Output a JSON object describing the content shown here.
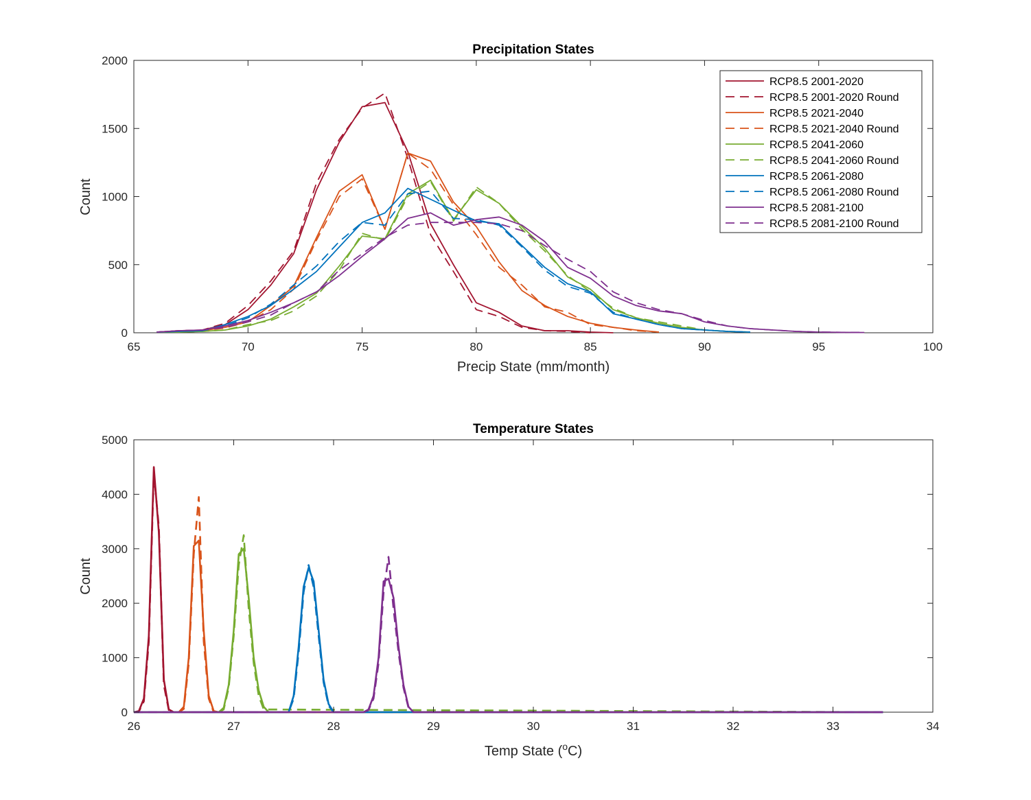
{
  "colors": {
    "p2001": "#A2142F",
    "p2021": "#D95319",
    "p2041": "#77AC30",
    "p2061": "#0072BD",
    "p2081": "#7E2F8E"
  },
  "legend": {
    "placement": "top-right",
    "entries": [
      {
        "label": "RCP8.5 2001-2020",
        "color": "#A2142F",
        "dashed": false
      },
      {
        "label": "RCP8.5 2001-2020 Round",
        "color": "#A2142F",
        "dashed": true
      },
      {
        "label": "RCP8.5 2021-2040",
        "color": "#D95319",
        "dashed": false
      },
      {
        "label": "RCP8.5 2021-2040 Round",
        "color": "#D95319",
        "dashed": true
      },
      {
        "label": "RCP8.5 2041-2060",
        "color": "#77AC30",
        "dashed": false
      },
      {
        "label": "RCP8.5 2041-2060 Round",
        "color": "#77AC30",
        "dashed": true
      },
      {
        "label": "RCP8.5 2061-2080",
        "color": "#0072BD",
        "dashed": false
      },
      {
        "label": "RCP8.5 2061-2080 Round",
        "color": "#0072BD",
        "dashed": true
      },
      {
        "label": "RCP8.5 2081-2100",
        "color": "#7E2F8E",
        "dashed": false
      },
      {
        "label": "RCP8.5 2081-2100 Round",
        "color": "#7E2F8E",
        "dashed": true
      }
    ]
  },
  "chart_data": [
    {
      "type": "line",
      "title": "Precipitation States",
      "xlabel": "Precip State (mm/month)",
      "ylabel": "Count",
      "xlim": [
        65,
        100
      ],
      "ylim": [
        0,
        2000
      ],
      "xticks": [
        "65",
        "70",
        "75",
        "80",
        "85",
        "90",
        "95",
        "100"
      ],
      "yticks": [
        "0",
        "500",
        "1000",
        "1500",
        "2000"
      ],
      "grid": false,
      "legend": "top-right",
      "series": [
        {
          "name": "RCP8.5 2001-2020",
          "color": "#A2142F",
          "dashed": false,
          "x": [
            66,
            67,
            68,
            69,
            70,
            71,
            72,
            73,
            74,
            75,
            76,
            77,
            78,
            79,
            80,
            81,
            82,
            83,
            84,
            85,
            86
          ],
          "y": [
            5,
            15,
            20,
            60,
            170,
            350,
            580,
            1050,
            1400,
            1660,
            1690,
            1330,
            800,
            500,
            220,
            150,
            50,
            15,
            15,
            5,
            0
          ]
        },
        {
          "name": "RCP8.5 2001-2020 Round",
          "color": "#A2142F",
          "dashed": true,
          "x": [
            66,
            67,
            68,
            69,
            70,
            71,
            72,
            73,
            74,
            75,
            76,
            77,
            78,
            79,
            80,
            81,
            82,
            83,
            84,
            85
          ],
          "y": [
            5,
            15,
            20,
            70,
            200,
            380,
            600,
            1100,
            1420,
            1650,
            1760,
            1280,
            720,
            450,
            170,
            120,
            40,
            15,
            10,
            0
          ]
        },
        {
          "name": "RCP8.5 2021-2040",
          "color": "#D95319",
          "dashed": false,
          "x": [
            66,
            67,
            68,
            69,
            70,
            71,
            72,
            73,
            74,
            75,
            76,
            77,
            78,
            79,
            80,
            81,
            82,
            83,
            84,
            85,
            86,
            87,
            88
          ],
          "y": [
            5,
            10,
            15,
            40,
            80,
            200,
            340,
            700,
            1040,
            1160,
            760,
            1320,
            1260,
            960,
            780,
            520,
            310,
            200,
            120,
            70,
            40,
            20,
            5
          ]
        },
        {
          "name": "RCP8.5 2021-2040 Round",
          "color": "#D95319",
          "dashed": true,
          "x": [
            66,
            67,
            68,
            69,
            70,
            71,
            72,
            73,
            74,
            75,
            76,
            77,
            78,
            79,
            80,
            81,
            82,
            83,
            84,
            85,
            86,
            87,
            88
          ],
          "y": [
            5,
            10,
            15,
            35,
            80,
            170,
            320,
            680,
            1000,
            1130,
            760,
            1320,
            1200,
            940,
            720,
            480,
            350,
            190,
            150,
            60,
            40,
            15,
            5
          ]
        },
        {
          "name": "RCP8.5 2041-2060",
          "color": "#77AC30",
          "dashed": false,
          "x": [
            66,
            67,
            68,
            69,
            70,
            71,
            72,
            73,
            74,
            75,
            76,
            77,
            78,
            79,
            80,
            81,
            82,
            83,
            84,
            85,
            86,
            87,
            88,
            89,
            90,
            91,
            92
          ],
          "y": [
            5,
            5,
            10,
            20,
            50,
            100,
            190,
            290,
            490,
            710,
            690,
            1020,
            1120,
            830,
            1050,
            950,
            780,
            620,
            410,
            320,
            170,
            110,
            70,
            40,
            20,
            10,
            5
          ]
        },
        {
          "name": "RCP8.5 2041-2060 Round",
          "color": "#77AC30",
          "dashed": true,
          "x": [
            66,
            67,
            68,
            69,
            70,
            71,
            72,
            73,
            74,
            75,
            76,
            77,
            78,
            79,
            80,
            81,
            82,
            83,
            84,
            85,
            86,
            87,
            88,
            89,
            90,
            91,
            92
          ],
          "y": [
            5,
            5,
            10,
            20,
            60,
            90,
            160,
            270,
            460,
            730,
            680,
            1000,
            1110,
            820,
            1070,
            950,
            760,
            600,
            420,
            300,
            180,
            110,
            80,
            50,
            20,
            10,
            5
          ]
        },
        {
          "name": "RCP8.5 2061-2080",
          "color": "#0072BD",
          "dashed": false,
          "x": [
            66,
            67,
            68,
            69,
            70,
            71,
            72,
            73,
            74,
            75,
            76,
            77,
            78,
            79,
            80,
            81,
            82,
            83,
            84,
            85,
            86,
            87,
            88,
            89,
            90,
            91,
            92
          ],
          "y": [
            5,
            10,
            15,
            60,
            120,
            200,
            320,
            450,
            630,
            810,
            880,
            1060,
            980,
            900,
            820,
            800,
            640,
            480,
            360,
            300,
            140,
            100,
            60,
            30,
            20,
            10,
            5
          ]
        },
        {
          "name": "RCP8.5 2061-2080 Round",
          "color": "#0072BD",
          "dashed": true,
          "x": [
            66,
            67,
            68,
            69,
            70,
            71,
            72,
            73,
            74,
            75,
            76,
            77,
            78,
            79,
            80,
            81,
            82,
            83,
            84,
            85,
            86,
            87,
            88,
            89,
            90,
            91,
            92
          ],
          "y": [
            5,
            10,
            15,
            50,
            110,
            210,
            350,
            490,
            670,
            810,
            790,
            1020,
            1040,
            840,
            830,
            790,
            630,
            460,
            340,
            290,
            150,
            100,
            60,
            30,
            20,
            10,
            5
          ]
        },
        {
          "name": "RCP8.5 2081-2100",
          "color": "#7E2F8E",
          "dashed": false,
          "x": [
            66,
            67,
            68,
            69,
            70,
            71,
            72,
            73,
            74,
            75,
            76,
            77,
            78,
            79,
            80,
            81,
            82,
            83,
            84,
            85,
            86,
            87,
            88,
            89,
            90,
            91,
            92,
            93,
            94,
            95,
            96,
            97
          ],
          "y": [
            5,
            15,
            20,
            50,
            90,
            150,
            220,
            300,
            420,
            560,
            690,
            840,
            880,
            790,
            830,
            850,
            790,
            670,
            480,
            400,
            270,
            200,
            160,
            140,
            80,
            50,
            30,
            20,
            10,
            5,
            3,
            2
          ]
        },
        {
          "name": "RCP8.5 2081-2100 Round",
          "color": "#7E2F8E",
          "dashed": true,
          "x": [
            66,
            67,
            68,
            69,
            70,
            71,
            72,
            73,
            74,
            75,
            76,
            77,
            78,
            79,
            80,
            81,
            82,
            83,
            84,
            85,
            86,
            87,
            88,
            89,
            90,
            91,
            92,
            93,
            94,
            95,
            96,
            97
          ],
          "y": [
            5,
            15,
            20,
            40,
            80,
            130,
            220,
            300,
            460,
            580,
            700,
            790,
            810,
            810,
            810,
            800,
            750,
            640,
            540,
            450,
            300,
            220,
            170,
            140,
            90,
            50,
            30,
            20,
            10,
            5,
            3,
            2
          ]
        }
      ]
    },
    {
      "type": "line",
      "title": "Temperature States",
      "xlabel": "Temp State (",
      "xlabel_sup": "o",
      "xlabel_after": "C)",
      "ylabel": "Count",
      "xlim": [
        26,
        34
      ],
      "ylim": [
        0,
        5000
      ],
      "xticks": [
        "26",
        "27",
        "28",
        "29",
        "30",
        "31",
        "32",
        "33",
        "34"
      ],
      "yticks": [
        "0",
        "1000",
        "2000",
        "3000",
        "4000",
        "5000"
      ],
      "grid": false,
      "series": [
        {
          "name": "RCP8.5 2001-2020",
          "color": "#A2142F",
          "dashed": false,
          "x": [
            26,
            26.05,
            26.1,
            26.15,
            26.2,
            26.25,
            26.3,
            26.35,
            26.4,
            26.5,
            33.5
          ],
          "y": [
            0,
            20,
            250,
            1400,
            4500,
            3300,
            600,
            50,
            0,
            0,
            0
          ]
        },
        {
          "name": "RCP8.5 2001-2020 Round",
          "color": "#A2142F",
          "dashed": true,
          "x": [
            26,
            26.05,
            26.1,
            26.15,
            26.2,
            26.25,
            26.3,
            26.35,
            26.4,
            26.5,
            33.5
          ],
          "y": [
            0,
            10,
            200,
            1300,
            4400,
            3400,
            500,
            40,
            0,
            0,
            0
          ]
        },
        {
          "name": "RCP8.5 2021-2040",
          "color": "#D95319",
          "dashed": false,
          "x": [
            26,
            26.45,
            26.5,
            26.55,
            26.6,
            26.65,
            26.7,
            26.75,
            26.8,
            26.85,
            33.5
          ],
          "y": [
            0,
            0,
            100,
            1000,
            3050,
            3150,
            1500,
            300,
            20,
            0,
            0
          ]
        },
        {
          "name": "RCP8.5 2021-2040 Round",
          "color": "#D95319",
          "dashed": true,
          "x": [
            26,
            26.45,
            26.5,
            26.55,
            26.6,
            26.65,
            26.7,
            26.75,
            26.8,
            33.5
          ],
          "y": [
            0,
            0,
            60,
            900,
            2900,
            3950,
            1300,
            250,
            0,
            0
          ]
        },
        {
          "name": "RCP8.5 2041-2060",
          "color": "#77AC30",
          "dashed": false,
          "x": [
            26,
            26.85,
            26.9,
            26.95,
            27,
            27.05,
            27.1,
            27.15,
            27.2,
            27.25,
            27.3,
            27.35,
            33.5
          ],
          "y": [
            0,
            0,
            80,
            500,
            1500,
            2900,
            3000,
            2100,
            1000,
            400,
            100,
            0,
            0
          ]
        },
        {
          "name": "RCP8.5 2041-2060 Round",
          "color": "#77AC30",
          "dashed": true,
          "x": [
            26,
            26.85,
            26.9,
            26.95,
            27,
            27.05,
            27.1,
            27.15,
            27.2,
            27.25,
            27.3,
            33.5
          ],
          "y": [
            0,
            0,
            50,
            450,
            1400,
            2700,
            3250,
            1900,
            900,
            300,
            50,
            0
          ]
        },
        {
          "name": "RCP8.5 2061-2080",
          "color": "#0072BD",
          "dashed": false,
          "x": [
            26,
            27.55,
            27.6,
            27.65,
            27.7,
            27.75,
            27.8,
            27.85,
            27.9,
            27.95,
            28,
            33.5
          ],
          "y": [
            0,
            0,
            300,
            1200,
            2300,
            2650,
            2400,
            1500,
            600,
            150,
            0,
            0
          ]
        },
        {
          "name": "RCP8.5 2061-2080 Round",
          "color": "#0072BD",
          "dashed": true,
          "x": [
            26,
            27.55,
            27.6,
            27.65,
            27.7,
            27.75,
            27.8,
            27.85,
            27.9,
            27.95,
            28,
            33.5
          ],
          "y": [
            0,
            0,
            250,
            1100,
            2200,
            2700,
            2300,
            1400,
            550,
            120,
            0,
            0
          ]
        },
        {
          "name": "RCP8.5 2081-2100",
          "color": "#7E2F8E",
          "dashed": false,
          "x": [
            26,
            28.3,
            28.35,
            28.4,
            28.45,
            28.5,
            28.55,
            28.6,
            28.65,
            28.7,
            28.75,
            28.8,
            33.5
          ],
          "y": [
            0,
            0,
            50,
            300,
            1000,
            2400,
            2450,
            2100,
            1200,
            500,
            100,
            0,
            0
          ]
        },
        {
          "name": "RCP8.5 2081-2100 Round",
          "color": "#7E2F8E",
          "dashed": true,
          "x": [
            26,
            28.3,
            28.35,
            28.4,
            28.45,
            28.5,
            28.55,
            28.6,
            28.65,
            28.7,
            28.75,
            28.8,
            33.5
          ],
          "y": [
            0,
            0,
            40,
            250,
            900,
            2200,
            2850,
            1900,
            1100,
            450,
            80,
            0,
            0
          ]
        }
      ]
    }
  ]
}
